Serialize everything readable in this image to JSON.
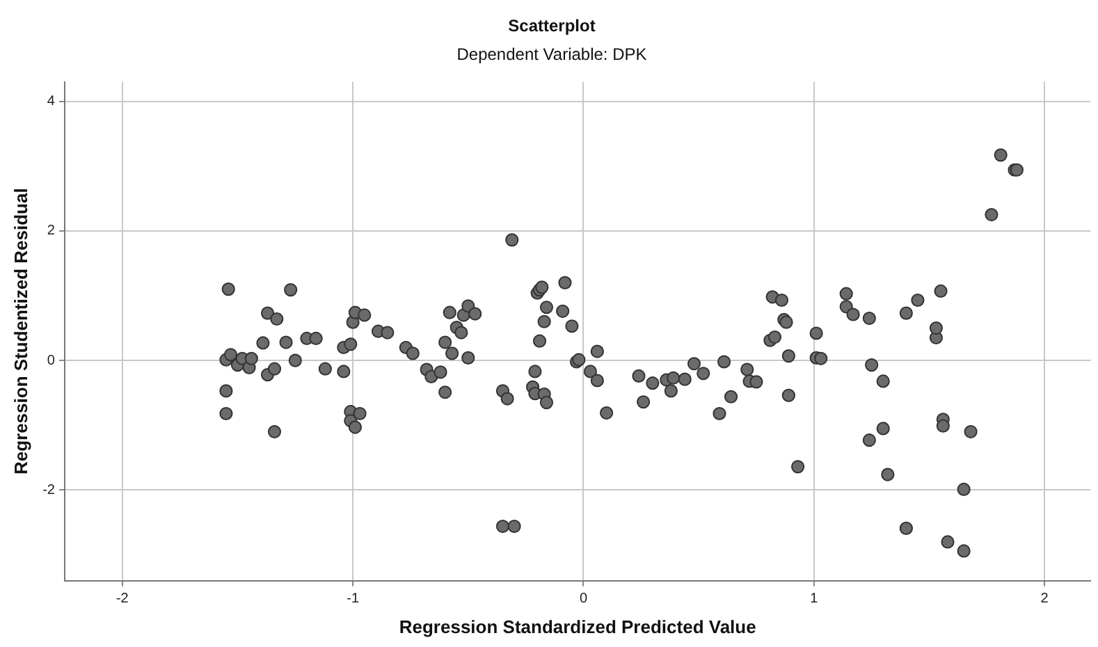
{
  "chart_data": {
    "type": "scatter",
    "title": "Scatterplot",
    "subtitle": "Dependent Variable: DPK",
    "xlabel": "Regression Standardized Predicted Value",
    "ylabel": "Regression Studentized Residual",
    "xlim": [
      -2.25,
      2.2
    ],
    "xticks": [
      -2,
      -1,
      0,
      1,
      2
    ],
    "ylim": [
      -3.4,
      4.3
    ],
    "yticks": [
      -2,
      0,
      2,
      4
    ],
    "grid": true,
    "legend": false,
    "marker": "circle",
    "series": [
      {
        "color": "#6b6b6b",
        "x": [
          -1.55,
          -1.53,
          -1.54,
          -1.55,
          -1.55,
          -1.5,
          -1.48,
          -1.45,
          -1.44,
          -1.39,
          -1.37,
          -1.33,
          -1.37,
          -1.34,
          -1.34,
          -1.29,
          -1.27,
          -1.25,
          -1.2,
          -1.16,
          -1.12,
          -1.04,
          -1.01,
          -1.04,
          -1.0,
          -0.99,
          -0.95,
          -1.01,
          -1.01,
          -0.99,
          -0.97,
          -0.89,
          -0.85,
          -0.77,
          -0.74,
          -0.68,
          -0.66,
          -0.62,
          -0.6,
          -0.6,
          -0.58,
          -0.57,
          -0.55,
          -0.53,
          -0.52,
          -0.5,
          -0.47,
          -0.5,
          -0.35,
          -0.33,
          -0.35,
          -0.3,
          -0.31,
          -0.21,
          -0.22,
          -0.2,
          -0.19,
          -0.18,
          -0.19,
          -0.17,
          -0.16,
          -0.21,
          -0.17,
          -0.16,
          -0.08,
          -0.09,
          -0.05,
          -0.03,
          -0.02,
          0.03,
          0.06,
          0.06,
          0.1,
          0.24,
          0.26,
          0.3,
          0.36,
          0.39,
          0.38,
          0.44,
          0.48,
          0.52,
          0.59,
          0.61,
          0.64,
          0.71,
          0.72,
          0.75,
          0.81,
          0.83,
          0.82,
          0.86,
          0.87,
          0.88,
          0.89,
          0.89,
          0.93,
          1.01,
          1.01,
          1.03,
          1.14,
          1.14,
          1.17,
          1.24,
          1.25,
          1.24,
          1.3,
          1.3,
          1.32,
          1.4,
          1.4,
          1.45,
          1.53,
          1.53,
          1.55,
          1.56,
          1.56,
          1.58,
          1.65,
          1.65,
          1.68,
          1.77,
          1.81,
          1.87,
          1.88
        ],
        "values": [
          0.01,
          0.09,
          1.1,
          -0.47,
          -0.82,
          -0.07,
          0.03,
          -0.11,
          0.03,
          0.27,
          0.73,
          0.64,
          -0.22,
          -0.13,
          -1.1,
          0.28,
          1.09,
          0.0,
          0.34,
          0.34,
          -0.13,
          0.2,
          0.25,
          -0.17,
          0.59,
          0.74,
          0.7,
          -0.79,
          -0.93,
          -1.03,
          -0.82,
          0.45,
          0.43,
          0.2,
          0.11,
          -0.14,
          -0.25,
          -0.18,
          0.28,
          -0.49,
          0.74,
          0.11,
          0.51,
          0.43,
          0.7,
          0.84,
          0.72,
          0.04,
          -0.47,
          -0.59,
          -2.56,
          -2.56,
          1.86,
          -0.17,
          -0.41,
          1.04,
          1.09,
          1.13,
          0.3,
          0.6,
          0.82,
          -0.51,
          -0.52,
          -0.65,
          1.2,
          0.76,
          0.53,
          -0.02,
          0.01,
          -0.17,
          0.14,
          -0.31,
          -0.81,
          -0.24,
          -0.64,
          -0.35,
          -0.3,
          -0.27,
          -0.47,
          -0.29,
          -0.05,
          -0.2,
          -0.82,
          -0.02,
          -0.56,
          -0.14,
          -0.32,
          -0.33,
          0.31,
          0.36,
          0.98,
          0.93,
          0.63,
          0.59,
          0.07,
          -0.54,
          -1.64,
          0.42,
          0.04,
          0.03,
          1.03,
          0.83,
          0.71,
          0.65,
          -0.07,
          -1.23,
          -0.32,
          -1.05,
          -1.76,
          -2.59,
          0.73,
          0.93,
          0.35,
          0.5,
          1.07,
          -0.91,
          -1.01,
          -2.8,
          -1.99,
          -2.94,
          -1.1,
          2.25,
          3.17,
          2.94,
          2.94
        ]
      }
    ]
  }
}
